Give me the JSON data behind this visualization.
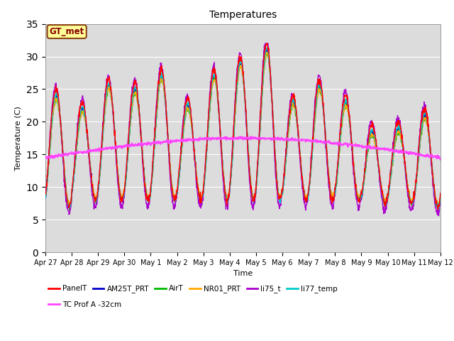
{
  "title": "Temperatures",
  "ylabel": "Temperature (C)",
  "xlabel": "Time",
  "ylim": [
    0,
    35
  ],
  "background_color": "#dcdcdc",
  "series_colors": {
    "PanelT": "#ff0000",
    "AM25T_PRT": "#0000cc",
    "AirT": "#00bb00",
    "NR01_PRT": "#ffaa00",
    "li75_t": "#aa00cc",
    "li77_temp": "#00cccc",
    "TC Prof A -32cm": "#ff44ff"
  },
  "gt_met_label": "GT_met",
  "gt_met_bg": "#ffff99",
  "gt_met_border": "#8B4513",
  "x_tick_labels": [
    "Apr 27",
    "Apr 28",
    "Apr 29",
    "Apr 30",
    "May 1",
    "May 2",
    "May 3",
    "May 4",
    "May 5",
    "May 6",
    "May 7",
    "May 8",
    "May 9",
    "May 10",
    "May 11",
    "May 12"
  ],
  "x_tick_positions": [
    0,
    1,
    2,
    3,
    4,
    5,
    6,
    7,
    8,
    9,
    10,
    11,
    12,
    13,
    14,
    15
  ],
  "yticks": [
    0,
    5,
    10,
    15,
    20,
    25,
    30,
    35
  ],
  "legend_row1": [
    "PanelT",
    "AM25T_PRT",
    "AirT",
    "NR01_PRT",
    "li75_t",
    "li77_temp"
  ],
  "legend_row2": [
    "TC Prof A -32cm"
  ]
}
